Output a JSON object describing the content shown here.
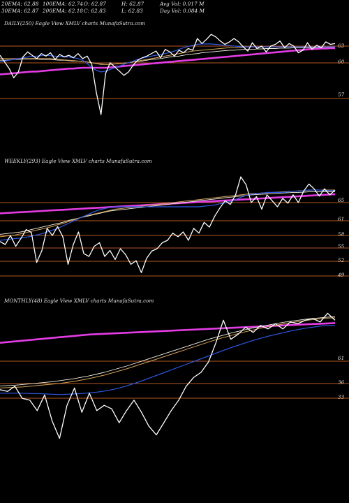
{
  "header": {
    "row1": [
      "20EMA: 62.88",
      "100EMA: 62.74",
      "O: 62.87",
      "H: 62.87",
      "Avg Vol: 0.017 M"
    ],
    "row2": [
      "30EMA: 62.87",
      "200EMA: 62.18",
      "C: 62.83",
      "L: 62.83",
      "Day Vol: 0.084  M"
    ]
  },
  "colors": {
    "background": "#000000",
    "price": "#ffffff",
    "ema_short": "#2f59e6",
    "ema_mid": "#d7a35a",
    "ema_long": "#f5f0e0",
    "ema_200": "#e43ce4",
    "grid": "#b4571f"
  },
  "chart_data": [
    {
      "type": "line",
      "title": "DAILY(250) Eagle   View  XMLV charts MunafaSutra.com",
      "y_ticks": [
        "63",
        "60",
        "57"
      ],
      "ylim": [
        55.4,
        66.6
      ],
      "series": [
        {
          "role": "price",
          "values": [
            63.0,
            62.2,
            61.4,
            60.3,
            61.0,
            62.8,
            63.4,
            63.0,
            62.6,
            63.2,
            62.9,
            63.3,
            62.5,
            63.1,
            62.8,
            63.0,
            62.7,
            63.2,
            62.6,
            62.9,
            61.9,
            58.5,
            55.9,
            60.8,
            62.1,
            61.6,
            61.1,
            60.6,
            61.0,
            61.8,
            62.4,
            62.7,
            62.9,
            63.2,
            63.5,
            62.7,
            63.7,
            63.4,
            62.9,
            63.6,
            63.3,
            63.8,
            63.6,
            65.0,
            64.4,
            64.9,
            65.5,
            65.2,
            64.7,
            64.3,
            64.6,
            65.0,
            64.6,
            64.0,
            63.5,
            64.5,
            63.8,
            64.1,
            63.4,
            64.1,
            64.3,
            64.7,
            63.9,
            64.4,
            64.1,
            63.3,
            63.6,
            64.5,
            63.7,
            64.2,
            63.9,
            64.6,
            64.3,
            64.4
          ]
        },
        {
          "role": "ema_short",
          "values": [
            62.2,
            62.3,
            62.4,
            62.5,
            62.6,
            62.7,
            62.8,
            62.85,
            62.9,
            62.95,
            63.0,
            62.95,
            62.9,
            62.85,
            62.8,
            62.8,
            62.7,
            62.6,
            62.4,
            62.0,
            61.5,
            61.2,
            61.0,
            61.1,
            61.3,
            61.5,
            61.7,
            61.9,
            62.1,
            62.3,
            62.5,
            62.65,
            62.8,
            62.9,
            63.0,
            63.1,
            63.2,
            63.35,
            63.5,
            63.7,
            63.9,
            64.05,
            64.2,
            64.3,
            64.35,
            64.35,
            64.35,
            64.3,
            64.25,
            64.2,
            64.15,
            64.1,
            64.05,
            64.0,
            64.0,
            64.0,
            64.0,
            64.0,
            64.0,
            64.0,
            64.0,
            64.0,
            64.0,
            64.0,
            64.0,
            64.0,
            64.0,
            64.0,
            64.0,
            64.0,
            64.0,
            64.0,
            64.0,
            64.0
          ]
        },
        {
          "role": "ema_mid",
          "values": [
            62.6,
            62.6,
            62.6,
            62.6,
            62.6,
            62.6,
            62.6,
            62.6,
            62.6,
            62.6,
            62.6,
            62.6,
            62.55,
            62.5,
            62.45,
            62.4,
            62.35,
            62.3,
            62.25,
            62.2,
            62.1,
            62.0,
            61.9,
            61.9,
            61.9,
            61.95,
            62.0,
            62.05,
            62.1,
            62.2,
            62.3,
            62.4,
            62.5,
            62.6,
            62.7,
            62.8,
            62.9,
            63.0,
            63.1,
            63.2,
            63.3,
            63.4,
            63.5,
            63.55,
            63.6,
            63.65,
            63.7,
            63.75,
            63.8,
            63.85,
            63.9,
            63.9,
            63.9,
            63.95,
            64.0,
            64.0,
            64.0,
            64.0,
            64.0,
            64.0,
            64.0,
            64.0,
            64.0,
            64.0,
            64.0,
            64.0,
            64.0,
            64.0,
            64.0,
            64.0,
            64.0,
            64.0,
            64.0,
            64.0
          ]
        },
        {
          "role": "ema_long",
          "values": [
            62.4,
            62.4,
            62.45,
            62.5,
            62.5,
            62.55,
            62.55,
            62.55,
            62.55,
            62.5,
            62.5,
            62.5,
            62.45,
            62.4,
            62.4,
            62.35,
            62.3,
            62.3,
            62.25,
            62.2,
            62.1,
            62.0,
            61.95,
            61.9,
            61.9,
            61.95,
            62.0,
            62.05,
            62.1,
            62.2,
            62.25,
            62.3,
            62.4,
            62.5,
            62.55,
            62.6,
            62.7,
            62.8,
            62.85,
            62.9,
            63.0,
            63.1,
            63.15,
            63.2,
            63.3,
            63.35,
            63.4,
            63.45,
            63.5,
            63.55,
            63.6,
            63.6,
            63.65,
            63.7,
            63.7,
            63.7,
            63.75,
            63.75,
            63.8,
            63.8,
            63.8,
            63.85,
            63.85,
            63.85,
            63.9,
            63.9,
            63.9,
            63.9,
            63.9,
            63.9,
            63.95,
            63.95,
            63.95,
            63.95
          ]
        },
        {
          "role": "ema_200",
          "values": [
            60.7,
            60.75,
            60.8,
            60.85,
            60.9,
            60.95,
            61.0,
            61.05,
            61.05,
            61.1,
            61.15,
            61.2,
            61.25,
            61.3,
            61.35,
            61.4,
            61.4,
            61.45,
            61.5,
            61.5,
            61.5,
            61.5,
            61.5,
            61.5,
            61.55,
            61.6,
            61.65,
            61.7,
            61.75,
            61.8,
            61.85,
            61.9,
            61.95,
            62.0,
            62.05,
            62.1,
            62.15,
            62.2,
            62.25,
            62.3,
            62.35,
            62.4,
            62.45,
            62.5,
            62.55,
            62.6,
            62.65,
            62.7,
            62.75,
            62.8,
            62.85,
            62.9,
            62.95,
            63.0,
            63.05,
            63.1,
            63.15,
            63.2,
            63.25,
            63.3,
            63.35,
            63.4,
            63.45,
            63.5,
            63.55,
            63.6,
            63.65,
            63.7,
            63.75,
            63.75,
            63.8,
            63.8,
            63.85,
            63.85
          ]
        }
      ]
    },
    {
      "type": "line",
      "title": "WEEKLY(293) Eagle   View  XMLV charts MunafaSutra.com",
      "y_ticks": [
        "65",
        "61",
        "58",
        "55",
        "52",
        "49"
      ],
      "ylim": [
        46.5,
        66.8
      ],
      "series": [
        {
          "role": "price",
          "values": [
            54.0,
            53.5,
            55.0,
            53.2,
            54.5,
            56.0,
            55.5,
            50.5,
            52.5,
            56.2,
            55.0,
            56.5,
            54.8,
            50.2,
            53.5,
            55.6,
            52.0,
            51.5,
            53.2,
            53.8,
            51.5,
            52.5,
            51.0,
            52.8,
            51.8,
            50.2,
            50.8,
            48.8,
            51.2,
            52.4,
            52.8,
            53.8,
            54.2,
            55.4,
            54.8,
            55.6,
            54.2,
            56.2,
            55.4,
            57.2,
            56.4,
            58.2,
            59.6,
            60.8,
            60.2,
            61.8,
            64.8,
            63.5,
            60.5,
            61.5,
            59.4,
            61.8,
            60.8,
            59.8,
            61.2,
            60.4,
            61.8,
            60.5,
            62.4,
            63.6,
            62.8,
            61.6,
            62.8,
            61.8,
            62.6
          ]
        },
        {
          "role": "ema_short",
          "values": [
            54.2,
            54.3,
            54.4,
            54.5,
            54.6,
            54.7,
            54.9,
            55.1,
            55.3,
            55.6,
            55.9,
            56.2,
            56.6,
            57.0,
            57.4,
            57.8,
            58.2,
            58.6,
            59.0,
            59.3,
            59.5,
            59.7,
            59.8,
            59.8,
            59.8,
            59.8,
            59.8,
            59.8,
            59.8,
            59.8,
            59.8,
            59.8,
            59.8,
            59.8,
            59.8,
            59.8,
            59.8,
            59.8,
            59.8,
            59.9,
            60.0,
            60.1,
            60.3,
            60.5,
            60.7,
            61.0,
            61.4,
            61.7,
            61.9,
            62.0,
            62.1,
            62.2,
            62.2,
            62.2,
            62.2,
            62.3,
            62.4,
            62.4,
            62.5,
            62.6,
            62.6,
            62.6,
            62.5,
            62.5,
            62.5
          ]
        },
        {
          "role": "ema_mid",
          "values": [
            54.8,
            54.9,
            55.0,
            55.1,
            55.3,
            55.5,
            55.7,
            55.9,
            56.1,
            56.3,
            56.5,
            56.8,
            57.0,
            57.3,
            57.6,
            57.9,
            58.2,
            58.4,
            58.6,
            58.8,
            59.0,
            59.2,
            59.4,
            59.5,
            59.6,
            59.7,
            59.8,
            59.9,
            60.0,
            60.1,
            60.2,
            60.3,
            60.4,
            60.5,
            60.6,
            60.7,
            60.8,
            60.9,
            61.0,
            61.1,
            61.2,
            61.3,
            61.4,
            61.5,
            61.6,
            61.7,
            61.8,
            61.9,
            62.0,
            62.05,
            62.1,
            62.15,
            62.2,
            62.25,
            62.3,
            62.35,
            62.4,
            62.45,
            62.5,
            62.55,
            62.6,
            62.6,
            62.6,
            62.6,
            62.6
          ]
        },
        {
          "role": "ema_long",
          "values": [
            55.2,
            55.3,
            55.4,
            55.5,
            55.6,
            55.8,
            56.0,
            56.2,
            56.4,
            56.6,
            56.8,
            57.0,
            57.2,
            57.5,
            57.7,
            57.9,
            58.1,
            58.3,
            58.5,
            58.7,
            58.9,
            59.1,
            59.2,
            59.3,
            59.4,
            59.5,
            59.6,
            59.7,
            59.8,
            59.9,
            60.0,
            60.1,
            60.2,
            60.3,
            60.4,
            60.5,
            60.6,
            60.7,
            60.8,
            60.9,
            61.0,
            61.1,
            61.2,
            61.3,
            61.4,
            61.5,
            61.6,
            61.7,
            61.8,
            61.85,
            61.9,
            61.95,
            62.0,
            62.05,
            62.1,
            62.15,
            62.2,
            62.2,
            62.25,
            62.3,
            62.3,
            62.3,
            62.3,
            62.3,
            62.3
          ]
        },
        {
          "role": "ema_200",
          "values": [
            58.7,
            58.75,
            58.8,
            58.85,
            58.9,
            58.95,
            59.0,
            59.05,
            59.1,
            59.15,
            59.2,
            59.25,
            59.3,
            59.35,
            59.4,
            59.45,
            59.5,
            59.55,
            59.6,
            59.65,
            59.7,
            59.75,
            59.8,
            59.85,
            59.9,
            59.95,
            60.0,
            60.05,
            60.1,
            60.15,
            60.2,
            60.25,
            60.3,
            60.35,
            60.4,
            60.45,
            60.5,
            60.55,
            60.6,
            60.65,
            60.7,
            60.75,
            60.8,
            60.85,
            60.9,
            60.95,
            61.0,
            61.05,
            61.1,
            61.15,
            61.2,
            61.25,
            61.3,
            61.35,
            61.4,
            61.45,
            61.5,
            61.55,
            61.6,
            61.65,
            61.7,
            61.75,
            61.8,
            61.85,
            61.9
          ]
        }
      ]
    },
    {
      "type": "line",
      "title": "MONTHLY(48) Eagle   View  XMLV charts MunafaSutra.com",
      "y_ticks": [
        "61",
        "36",
        "33"
      ],
      "ylim": [
        30.0,
        67.0
      ],
      "series": [
        {
          "role": "price",
          "values": [
            42.5,
            42.0,
            43.5,
            40.0,
            39.5,
            36.5,
            41.0,
            33.5,
            28.5,
            38.0,
            43.0,
            36.0,
            41.5,
            36.5,
            38.0,
            37.0,
            33.0,
            36.5,
            39.5,
            36.0,
            32.0,
            29.5,
            33.0,
            36.5,
            39.5,
            43.5,
            46.0,
            47.5,
            50.5,
            56.0,
            62.5,
            57.0,
            58.5,
            60.5,
            59.0,
            61.0,
            60.0,
            61.5,
            60.0,
            62.0,
            61.5,
            62.5,
            63.0,
            62.0,
            64.5,
            62.5
          ]
        },
        {
          "role": "ema_short",
          "values": [
            41.5,
            41.5,
            41.5,
            41.5,
            41.4,
            41.4,
            41.3,
            41.2,
            41.1,
            41.2,
            41.3,
            41.4,
            41.6,
            41.8,
            42.1,
            42.5,
            43.0,
            43.6,
            44.3,
            45.0,
            45.8,
            46.6,
            47.4,
            48.2,
            49.0,
            49.8,
            50.6,
            51.4,
            52.2,
            53.0,
            53.8,
            54.6,
            55.3,
            56.0,
            56.7,
            57.3,
            57.9,
            58.4,
            58.9,
            59.4,
            59.8,
            60.2,
            60.5,
            60.8,
            61.0,
            61.0
          ]
        },
        {
          "role": "ema_mid",
          "values": [
            43.0,
            43.1,
            43.2,
            43.3,
            43.5,
            43.7,
            43.9,
            44.1,
            44.3,
            44.6,
            44.9,
            45.3,
            45.7,
            46.2,
            46.7,
            47.3,
            47.9,
            48.5,
            49.2,
            49.9,
            50.6,
            51.3,
            52.0,
            52.7,
            53.4,
            54.1,
            54.8,
            55.5,
            56.2,
            56.9,
            57.5,
            58.1,
            58.7,
            59.2,
            59.7,
            60.2,
            60.6,
            61.0,
            61.4,
            61.8,
            62.1,
            62.4,
            62.7,
            62.9,
            63.1,
            63.2
          ]
        },
        {
          "role": "ema_long",
          "values": [
            43.6,
            43.7,
            43.8,
            44.0,
            44.2,
            44.4,
            44.6,
            44.8,
            45.1,
            45.4,
            45.7,
            46.1,
            46.5,
            47.0,
            47.5,
            48.1,
            48.7,
            49.3,
            50.0,
            50.7,
            51.4,
            52.1,
            52.8,
            53.5,
            54.2,
            54.9,
            55.6,
            56.3,
            57.0,
            57.6,
            58.2,
            58.8,
            59.3,
            59.8,
            60.3,
            60.7,
            61.1,
            61.5,
            61.9,
            62.2,
            62.5,
            62.8,
            63.0,
            63.2,
            63.4,
            63.5
          ]
        },
        {
          "role": "ema_200",
          "values": [
            56.0,
            56.2,
            56.4,
            56.6,
            56.8,
            57.0,
            57.2,
            57.4,
            57.6,
            57.8,
            58.0,
            58.2,
            58.4,
            58.5,
            58.6,
            58.7,
            58.8,
            58.9,
            59.0,
            59.1,
            59.2,
            59.3,
            59.4,
            59.5,
            59.6,
            59.7,
            59.8,
            59.9,
            60.0,
            60.1,
            60.2,
            60.3,
            60.4,
            60.5,
            60.6,
            60.7,
            60.8,
            60.9,
            61.0,
            61.1,
            61.2,
            61.3,
            61.4,
            61.5,
            61.6,
            61.7
          ]
        }
      ]
    }
  ]
}
